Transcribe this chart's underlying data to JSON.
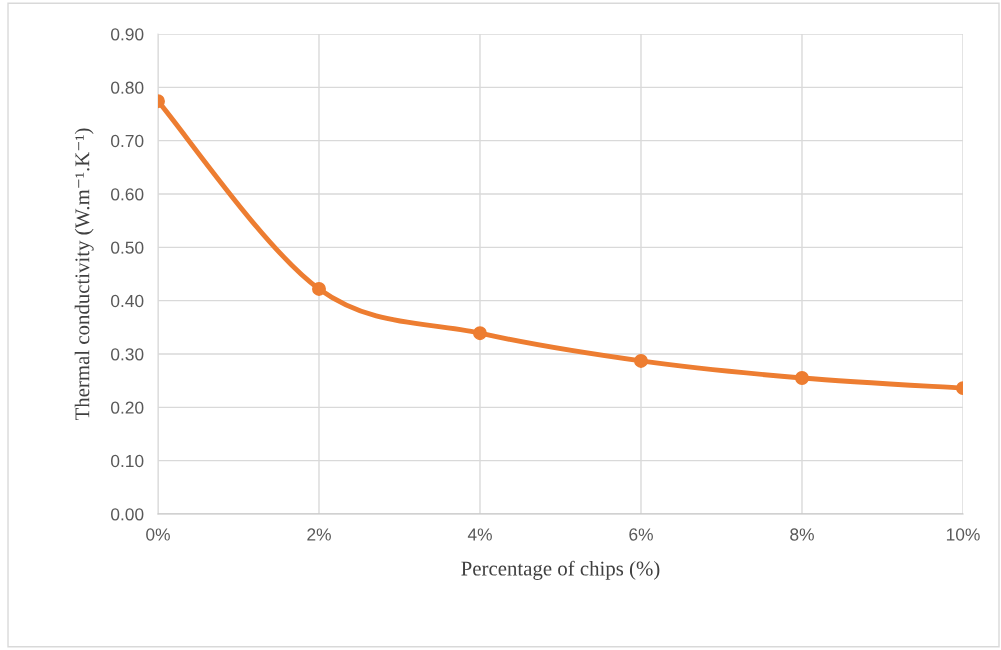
{
  "chart_data": {
    "type": "line",
    "xlabel": "Percentage of chips (%)",
    "ylabel": "Thermal conductivity (W.m⁻¹.K⁻¹)",
    "x": [
      0,
      2,
      4,
      6,
      8,
      10
    ],
    "series": [
      {
        "color": "#ed7d31",
        "values": [
          0.774,
          0.422,
          0.339,
          0.287,
          0.255,
          0.236
        ]
      }
    ],
    "xlim": [
      0,
      10
    ],
    "xticks": [
      {
        "value": 0,
        "label": "0%"
      },
      {
        "value": 2,
        "label": "2%"
      },
      {
        "value": 4,
        "label": "4%"
      },
      {
        "value": 6,
        "label": "6%"
      },
      {
        "value": 8,
        "label": "8%"
      },
      {
        "value": 10,
        "label": "10%"
      }
    ],
    "ylim": [
      0,
      0.9
    ],
    "yticks": [
      {
        "value": 0,
        "label": "0.00"
      },
      {
        "value": 0.1,
        "label": "0.10"
      },
      {
        "value": 0.2,
        "label": "0.20"
      },
      {
        "value": 0.3,
        "label": "0.30"
      },
      {
        "value": 0.4,
        "label": "0.40"
      },
      {
        "value": 0.5,
        "label": "0.50"
      },
      {
        "value": 0.6,
        "label": "0.60"
      },
      {
        "value": 0.7,
        "label": "0.70"
      },
      {
        "value": 0.8,
        "label": "0.80"
      },
      {
        "value": 0.9,
        "label": "0.90"
      }
    ],
    "grid": true,
    "marker": "circle",
    "line_style": "solid",
    "legend": false
  }
}
